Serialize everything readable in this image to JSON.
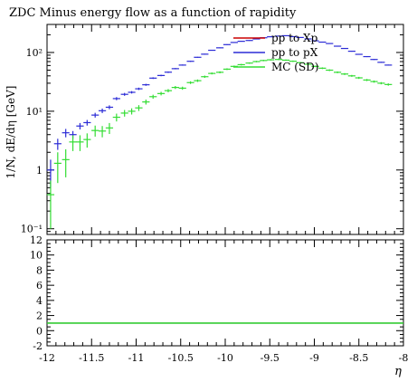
{
  "chart_data": {
    "type": "scatter",
    "title": "ZDC Minus energy flow as a function of rapidity",
    "ylabel": "1/N, dE/dη [GeV]",
    "xlabel": "η",
    "xlim": [
      -12,
      -8
    ],
    "ylim": [
      0.08,
      300
    ],
    "yscale": "log",
    "legend_position": "top-right",
    "y_ticks": [
      {
        "value": 0.1,
        "label": "10⁻¹"
      },
      {
        "value": 1,
        "label": "1"
      },
      {
        "value": 10,
        "label": "10¹"
      },
      {
        "value": 100,
        "label": "10²"
      }
    ],
    "x_ticks": [
      {
        "value": -12,
        "label": "-12"
      },
      {
        "value": -11.5,
        "label": "-11.5"
      },
      {
        "value": -11,
        "label": "-11"
      },
      {
        "value": -10.5,
        "label": "-10.5"
      },
      {
        "value": -10,
        "label": "-10"
      },
      {
        "value": -9.5,
        "label": "-9.5"
      },
      {
        "value": -9,
        "label": "-9"
      },
      {
        "value": -8.5,
        "label": "-8.5"
      },
      {
        "value": -8,
        "label": "-8"
      }
    ],
    "series": [
      {
        "name": "pp to Xp",
        "color": "#cc0000",
        "x": [],
        "y": []
      },
      {
        "name": "pp to pX",
        "color": "#2b2bd6",
        "x": [
          -11.96,
          -11.88,
          -11.79,
          -11.71,
          -11.63,
          -11.55,
          -11.46,
          -11.38,
          -11.3,
          -11.22,
          -11.13,
          -11.05,
          -10.97,
          -10.89,
          -10.81,
          -10.72,
          -10.64,
          -10.56,
          -10.48,
          -10.39,
          -10.31,
          -10.23,
          -10.15,
          -10.06,
          -9.98,
          -9.9,
          -9.82,
          -9.73,
          -9.65,
          -9.57,
          -9.49,
          -9.4,
          -9.32,
          -9.24,
          -9.16,
          -9.07,
          -8.99,
          -8.91,
          -8.83,
          -8.74,
          -8.66,
          -8.58,
          -8.5,
          -8.41,
          -8.33,
          -8.25,
          -8.17
        ],
        "y": [
          1.0,
          2.8,
          4.3,
          4.0,
          5.6,
          6.4,
          8.6,
          10.2,
          11.7,
          16.4,
          19.4,
          21.0,
          24.1,
          28.2,
          36.6,
          40.6,
          46.2,
          53.0,
          61.0,
          70.8,
          82.8,
          93.6,
          109,
          120,
          136,
          148,
          155,
          160,
          170,
          178,
          185,
          190,
          193,
          186,
          180,
          170,
          158,
          150,
          142,
          128,
          117,
          105,
          93,
          85,
          76,
          68,
          61
        ],
        "yerr": [
          0.5,
          0.6,
          0.7,
          0.6,
          0.7,
          0.7,
          0.8,
          0.9,
          0.9,
          1.0,
          1.1,
          1.0,
          1.1,
          1.1,
          1.2,
          1.2,
          1.3,
          1.3,
          1.4,
          1.5,
          1.5,
          1.6,
          1.8,
          1.9,
          2.0,
          2.1,
          2.2,
          2.2,
          2.3,
          2.3,
          2.4,
          2.4,
          2.4,
          2.4,
          2.3,
          2.3,
          2.2,
          2.1,
          2.0,
          1.9,
          1.8,
          1.7,
          1.6,
          1.5,
          1.4,
          1.3,
          1.2
        ]
      },
      {
        "name": "MC (SD)",
        "color": "#33dd33",
        "x": [
          -11.96,
          -11.88,
          -11.79,
          -11.71,
          -11.63,
          -11.55,
          -11.46,
          -11.38,
          -11.3,
          -11.22,
          -11.13,
          -11.05,
          -10.97,
          -10.89,
          -10.81,
          -10.72,
          -10.64,
          -10.56,
          -10.48,
          -10.39,
          -10.31,
          -10.23,
          -10.15,
          -10.06,
          -9.98,
          -9.9,
          -9.82,
          -9.73,
          -9.65,
          -9.57,
          -9.49,
          -9.4,
          -9.32,
          -9.24,
          -9.16,
          -9.07,
          -8.99,
          -8.91,
          -8.83,
          -8.74,
          -8.66,
          -8.58,
          -8.5,
          -8.41,
          -8.33,
          -8.25,
          -8.17
        ],
        "y": [
          0.38,
          1.3,
          1.5,
          3.0,
          3.0,
          3.3,
          4.7,
          4.6,
          5.2,
          7.9,
          9.3,
          10.0,
          11.4,
          14.4,
          17.7,
          20.0,
          22.4,
          25.4,
          24.7,
          30.7,
          33.1,
          38.7,
          44.0,
          46.0,
          52.0,
          58.0,
          62.0,
          66.0,
          70.0,
          73.0,
          75.0,
          76.0,
          74.0,
          71.0,
          67.0,
          63.0,
          58.0,
          54.0,
          50.0,
          46.0,
          43.0,
          40.0,
          37.0,
          34.0,
          32.0,
          30.0,
          28.5
        ],
        "yerr": [
          0.28,
          0.7,
          0.75,
          0.9,
          0.9,
          0.9,
          1.0,
          1.0,
          1.1,
          1.2,
          1.2,
          1.2,
          1.3,
          1.4,
          1.4,
          1.4,
          1.4,
          1.5,
          1.5,
          1.6,
          1.6,
          1.7,
          1.7,
          1.8,
          1.8,
          1.9,
          1.9,
          1.9,
          2.0,
          2.0,
          2.0,
          2.0,
          2.0,
          2.0,
          1.9,
          1.9,
          1.8,
          1.8,
          1.7,
          1.6,
          1.6,
          1.5,
          1.5,
          1.4,
          1.4,
          1.3,
          1.3
        ]
      }
    ],
    "ratio_panel": {
      "ylim": [
        -2,
        12
      ],
      "y_ticks": [
        {
          "value": -2,
          "label": "-2"
        },
        {
          "value": 0,
          "label": "0"
        },
        {
          "value": 2,
          "label": "2"
        },
        {
          "value": 4,
          "label": "4"
        },
        {
          "value": 6,
          "label": "6"
        },
        {
          "value": 8,
          "label": "8"
        },
        {
          "value": 10,
          "label": "10"
        },
        {
          "value": 12,
          "label": "12"
        }
      ],
      "reference_value": 1,
      "reference_color": "#33cc33"
    }
  }
}
